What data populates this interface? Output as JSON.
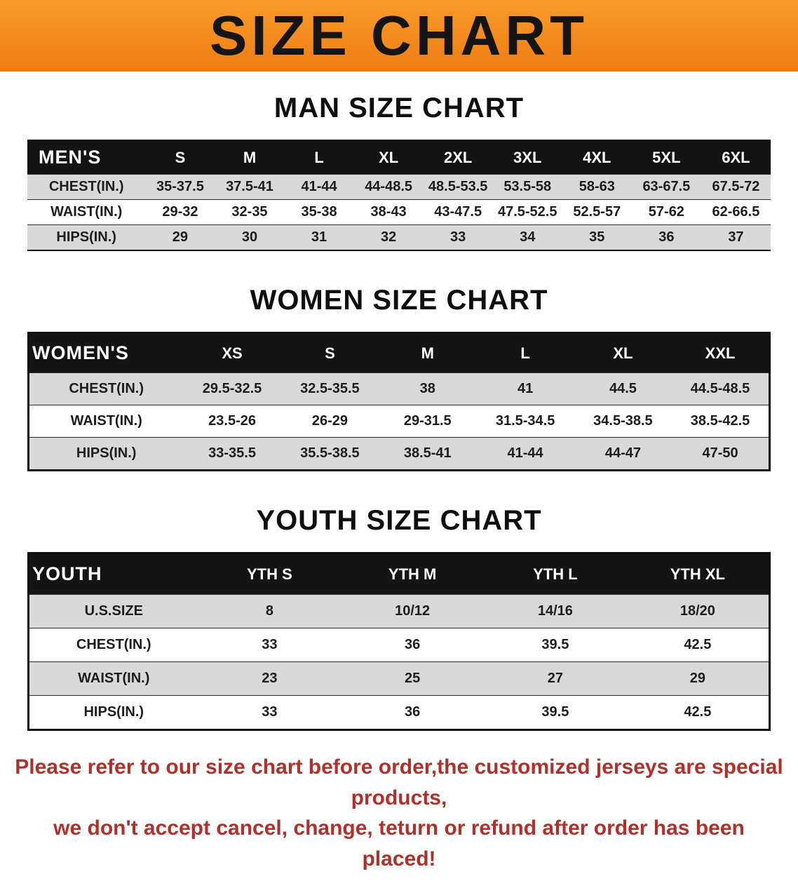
{
  "colors": {
    "banner_bg": "#f38a1d",
    "notice_text": "#b1302a",
    "header_row_bg": "#141414",
    "shade_row_bg": "#d9d9d9"
  },
  "banner": {
    "title": "SIZE CHART"
  },
  "sections": [
    {
      "heading": "MAN SIZE CHART",
      "table": {
        "label": "MEN'S",
        "columns": [
          "S",
          "M",
          "L",
          "XL",
          "2XL",
          "3XL",
          "4XL",
          "5XL",
          "6XL"
        ],
        "rows": [
          {
            "label": "CHEST(IN.)",
            "values": [
              "35-37.5",
              "37.5-41",
              "41-44",
              "44-48.5",
              "48.5-53.5",
              "53.5-58",
              "58-63",
              "63-67.5",
              "67.5-72"
            ]
          },
          {
            "label": "WAIST(IN.)",
            "values": [
              "29-32",
              "32-35",
              "35-38",
              "38-43",
              "43-47.5",
              "47.5-52.5",
              "52.5-57",
              "57-62",
              "62-66.5"
            ]
          },
          {
            "label": "HIPS(IN.)",
            "values": [
              "29",
              "30",
              "31",
              "32",
              "33",
              "34",
              "35",
              "36",
              "37"
            ]
          }
        ]
      }
    },
    {
      "heading": "WOMEN SIZE CHART",
      "table": {
        "label": "WOMEN'S",
        "columns": [
          "XS",
          "S",
          "M",
          "L",
          "XL",
          "XXL"
        ],
        "rows": [
          {
            "label": "CHEST(IN.)",
            "values": [
              "29.5-32.5",
              "32.5-35.5",
              "38",
              "41",
              "44.5",
              "44.5-48.5"
            ]
          },
          {
            "label": "WAIST(IN.)",
            "values": [
              "23.5-26",
              "26-29",
              "29-31.5",
              "31.5-34.5",
              "34.5-38.5",
              "38.5-42.5"
            ]
          },
          {
            "label": "HIPS(IN.)",
            "values": [
              "33-35.5",
              "35.5-38.5",
              "38.5-41",
              "41-44",
              "44-47",
              "47-50"
            ]
          }
        ]
      }
    },
    {
      "heading": "YOUTH SIZE CHART",
      "table": {
        "label": "YOUTH",
        "columns": [
          "YTH S",
          "YTH M",
          "YTH L",
          "YTH XL"
        ],
        "rows": [
          {
            "label": "U.S.SIZE",
            "values": [
              "8",
              "10/12",
              "14/16",
              "18/20"
            ]
          },
          {
            "label": "CHEST(IN.)",
            "values": [
              "33",
              "36",
              "39.5",
              "42.5"
            ]
          },
          {
            "label": "WAIST(IN.)",
            "values": [
              "23",
              "25",
              "27",
              "29"
            ]
          },
          {
            "label": "HIPS(IN.)",
            "values": [
              "33",
              "36",
              "39.5",
              "42.5"
            ]
          }
        ]
      }
    }
  ],
  "footer": {
    "line1": "Please refer to our size chart before order,the customized jerseys are special products,",
    "line2": "we don't accept cancel, change, teturn or refund after order has been placed!"
  }
}
